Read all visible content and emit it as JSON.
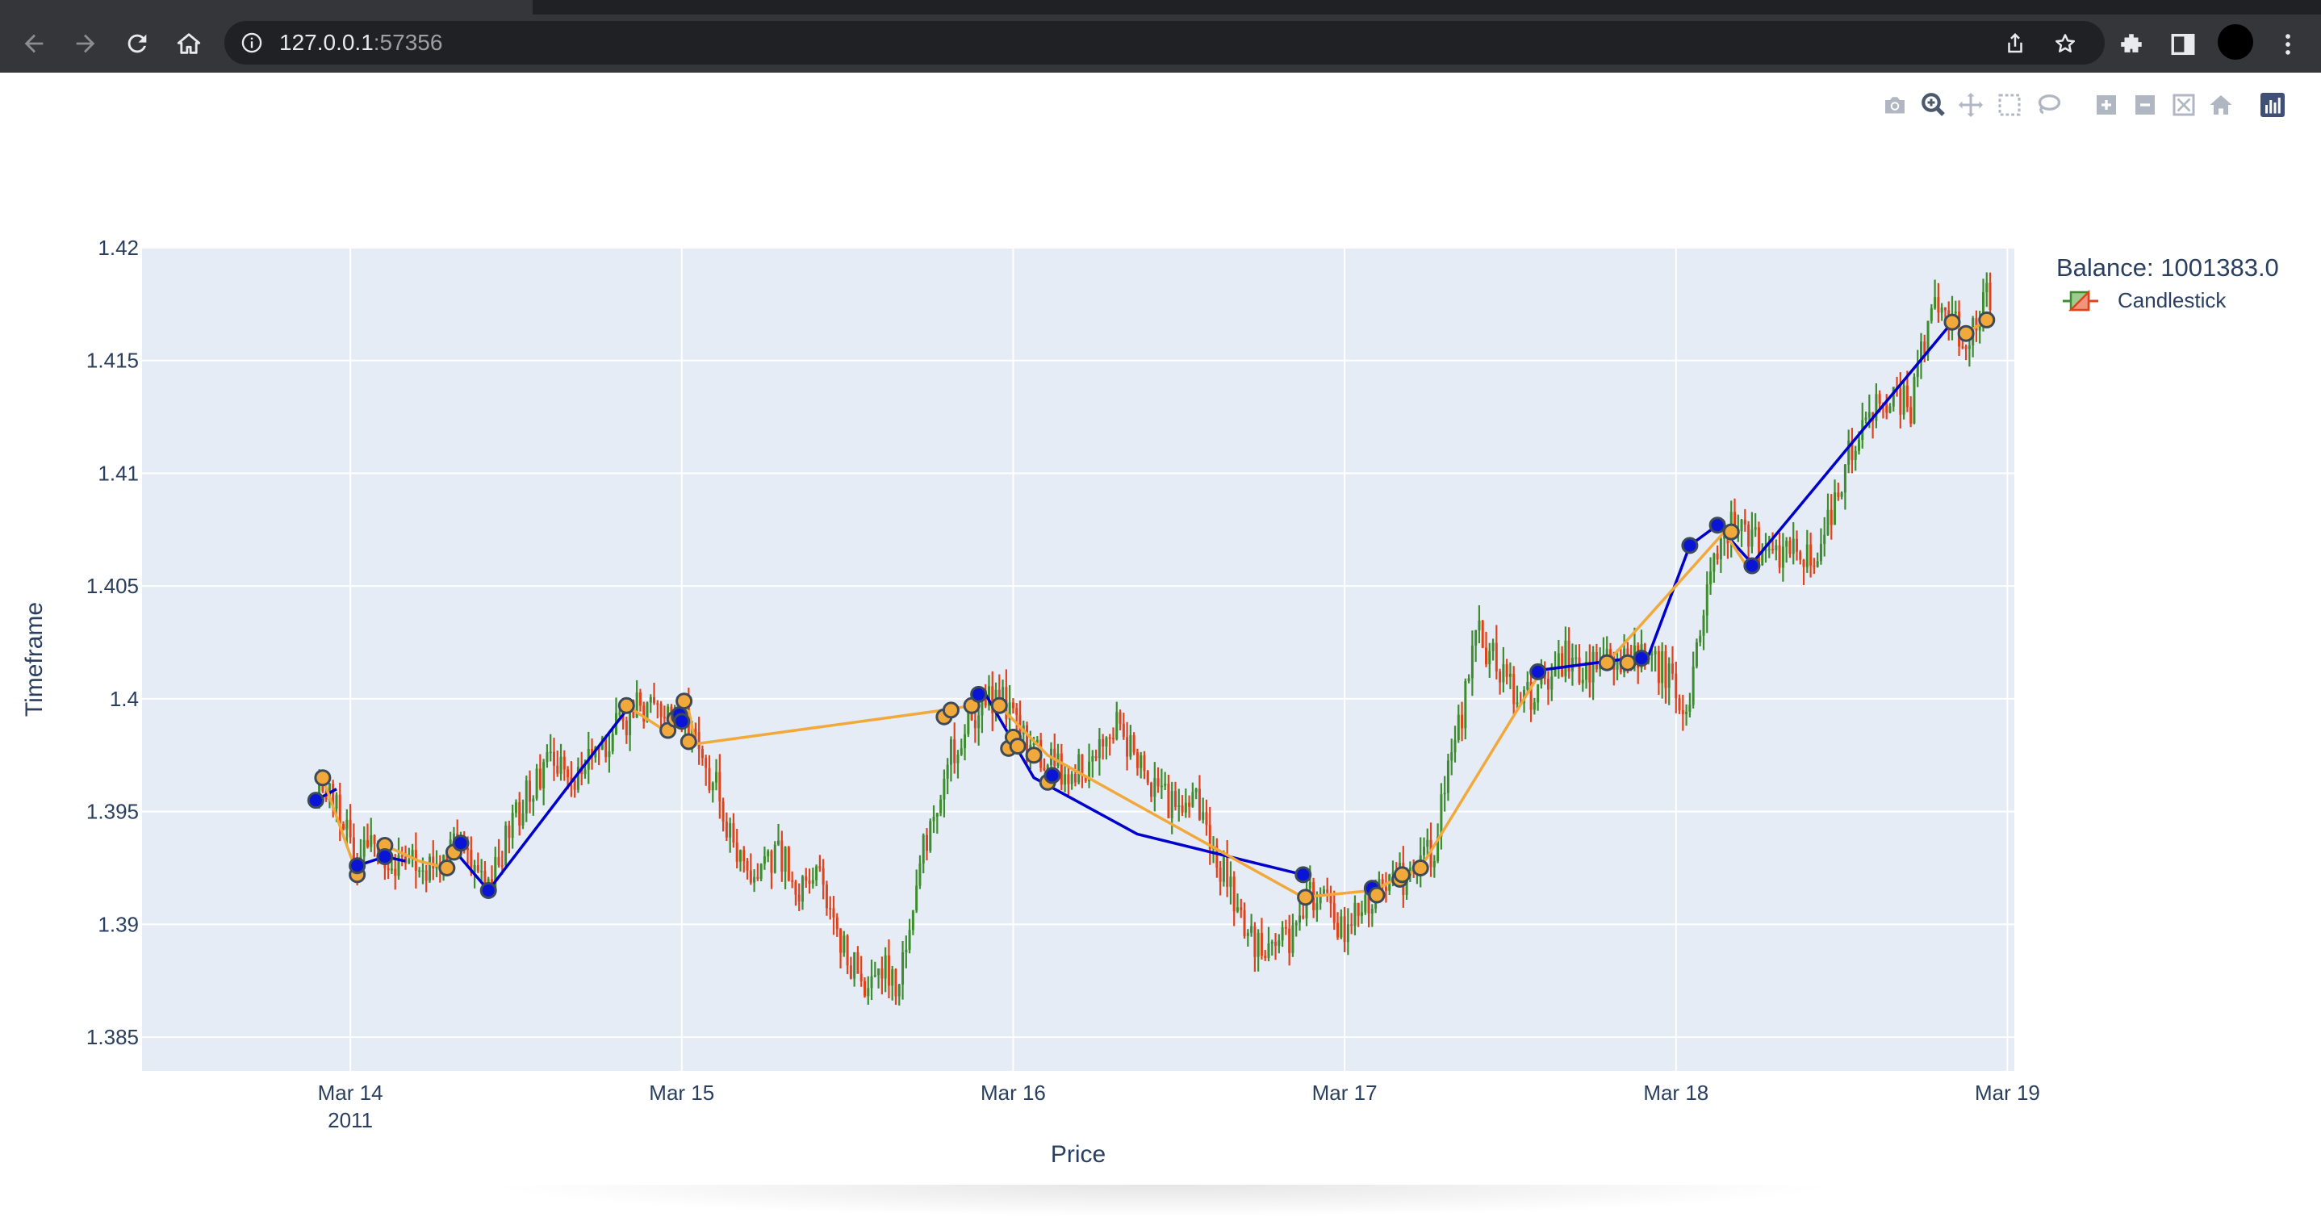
{
  "browser": {
    "url_host": "127.0.0.1",
    "url_port": ":57356"
  },
  "colors": {
    "plot_bg": "#e5ecf6",
    "grid": "#ffffff",
    "increasing": "#3d8c2e",
    "decreasing": "#e0421b",
    "long_line": "#0000cc",
    "short_line": "#f2a93b",
    "long_marker": "#0a14d6",
    "short_marker": "#f2a93b",
    "marker_outline": "#3c4a5a",
    "text": "#2a3f5f"
  },
  "chart_data": {
    "type": "candlestick",
    "title": "",
    "xlabel": "Price",
    "ylabel": "Timeframe",
    "x_tick_labels": [
      "Mar 14",
      "Mar 15",
      "Mar 16",
      "Mar 17",
      "Mar 18",
      "Mar 19"
    ],
    "x_tick_sublabel": "2011",
    "x_tick_values": [
      "2011-03-14",
      "2011-03-15",
      "2011-03-16",
      "2011-03-17",
      "2011-03-18",
      "2011-03-19"
    ],
    "xlim": [
      "2011-03-13 08:55",
      "2011-03-19 00:30"
    ],
    "y_tick_labels": [
      "1.385",
      "1.39",
      "1.395",
      "1.4",
      "1.405",
      "1.41",
      "1.415",
      "1.42"
    ],
    "y_tick_values": [
      1.385,
      1.39,
      1.395,
      1.4,
      1.405,
      1.41,
      1.415,
      1.42
    ],
    "ylim": [
      1.3835,
      1.42
    ],
    "legend": {
      "title": "Balance: 1001383.0",
      "entries": [
        "Candlestick"
      ],
      "placement": "top-right"
    },
    "price_path": [
      [
        "2011-03-13 21:30",
        1.3955
      ],
      [
        "2011-03-13 22:30",
        1.396
      ],
      [
        "2011-03-13 23:30",
        1.3945
      ],
      [
        "2011-03-14 00:30",
        1.3925
      ],
      [
        "2011-03-14 01:30",
        1.3935
      ],
      [
        "2011-03-14 02:30",
        1.393
      ],
      [
        "2011-03-14 04:00",
        1.3928
      ],
      [
        "2011-03-14 06:00",
        1.3925
      ],
      [
        "2011-03-14 07:30",
        1.3935
      ],
      [
        "2011-03-14 09:00",
        1.393
      ],
      [
        "2011-03-14 10:00",
        1.3915
      ],
      [
        "2011-03-14 11:30",
        1.394
      ],
      [
        "2011-03-14 13:00",
        1.396
      ],
      [
        "2011-03-14 14:30",
        1.3972
      ],
      [
        "2011-03-14 16:00",
        1.3965
      ],
      [
        "2011-03-14 17:30",
        1.3975
      ],
      [
        "2011-03-14 19:00",
        1.3985
      ],
      [
        "2011-03-14 20:30",
        1.3995
      ],
      [
        "2011-03-14 21:30",
        1.3998
      ],
      [
        "2011-03-14 23:00",
        1.3992
      ],
      [
        "2011-03-15 00:00",
        1.3995
      ],
      [
        "2011-03-15 01:00",
        1.398
      ],
      [
        "2011-03-15 02:30",
        1.396
      ],
      [
        "2011-03-15 04:00",
        1.393
      ],
      [
        "2011-03-15 05:30",
        1.392
      ],
      [
        "2011-03-15 07:00",
        1.3935
      ],
      [
        "2011-03-15 08:30",
        1.391
      ],
      [
        "2011-03-15 10:00",
        1.393
      ],
      [
        "2011-03-15 11:00",
        1.39
      ],
      [
        "2011-03-15 12:30",
        1.388
      ],
      [
        "2011-03-15 13:30",
        1.387
      ],
      [
        "2011-03-15 14:30",
        1.388
      ],
      [
        "2011-03-15 15:30",
        1.3875
      ],
      [
        "2011-03-15 16:30",
        1.39
      ],
      [
        "2011-03-15 17:30",
        1.3935
      ],
      [
        "2011-03-15 18:30",
        1.395
      ],
      [
        "2011-03-15 19:30",
        1.3975
      ],
      [
        "2011-03-15 20:30",
        1.3985
      ],
      [
        "2011-03-15 21:30",
        1.3995
      ],
      [
        "2011-03-15 22:30",
        1.4
      ],
      [
        "2011-03-15 23:30",
        1.3998
      ],
      [
        "2011-03-16 00:30",
        1.3985
      ],
      [
        "2011-03-16 01:30",
        1.3975
      ],
      [
        "2011-03-16 03:00",
        1.397
      ],
      [
        "2011-03-16 04:00",
        1.3965
      ],
      [
        "2011-03-16 06:00",
        1.3975
      ],
      [
        "2011-03-16 07:30",
        1.399
      ],
      [
        "2011-03-16 09:00",
        1.397
      ],
      [
        "2011-03-16 10:30",
        1.396
      ],
      [
        "2011-03-16 12:00",
        1.395
      ],
      [
        "2011-03-16 13:00",
        1.396
      ],
      [
        "2011-03-16 14:00",
        1.394
      ],
      [
        "2011-03-16 15:30",
        1.392
      ],
      [
        "2011-03-16 16:30",
        1.39
      ],
      [
        "2011-03-16 17:30",
        1.389
      ],
      [
        "2011-03-16 18:30",
        1.3885
      ],
      [
        "2011-03-16 20:00",
        1.3895
      ],
      [
        "2011-03-16 21:30",
        1.3915
      ],
      [
        "2011-03-16 23:00",
        1.3905
      ],
      [
        "2011-03-17 00:00",
        1.3895
      ],
      [
        "2011-03-17 01:00",
        1.3905
      ],
      [
        "2011-03-17 02:30",
        1.3915
      ],
      [
        "2011-03-17 04:00",
        1.392
      ],
      [
        "2011-03-17 05:30",
        1.3925
      ],
      [
        "2011-03-17 06:30",
        1.3935
      ],
      [
        "2011-03-17 07:30",
        1.397
      ],
      [
        "2011-03-17 08:30",
        1.399
      ],
      [
        "2011-03-17 09:30",
        1.403
      ],
      [
        "2011-03-17 10:30",
        1.402
      ],
      [
        "2011-03-17 11:30",
        1.401
      ],
      [
        "2011-03-17 13:00",
        1.4
      ],
      [
        "2011-03-17 14:30",
        1.4005
      ],
      [
        "2011-03-17 16:00",
        1.402
      ],
      [
        "2011-03-17 17:30",
        1.4012
      ],
      [
        "2011-03-17 19:00",
        1.4015
      ],
      [
        "2011-03-17 20:30",
        1.4018
      ],
      [
        "2011-03-17 22:00",
        1.402
      ],
      [
        "2011-03-17 23:30",
        1.401
      ],
      [
        "2011-03-18 00:30",
        1.399
      ],
      [
        "2011-03-18 01:30",
        1.402
      ],
      [
        "2011-03-18 02:30",
        1.406
      ],
      [
        "2011-03-18 04:00",
        1.4075
      ],
      [
        "2011-03-18 05:30",
        1.407
      ],
      [
        "2011-03-18 07:00",
        1.406
      ],
      [
        "2011-03-18 08:30",
        1.407
      ],
      [
        "2011-03-18 10:00",
        1.406
      ],
      [
        "2011-03-18 11:30",
        1.4085
      ],
      [
        "2011-03-18 12:30",
        1.411
      ],
      [
        "2011-03-18 14:00",
        1.413
      ],
      [
        "2011-03-18 15:30",
        1.4135
      ],
      [
        "2011-03-18 17:00",
        1.413
      ],
      [
        "2011-03-18 18:00",
        1.416
      ],
      [
        "2011-03-18 19:00",
        1.4175
      ],
      [
        "2011-03-18 20:00",
        1.4165
      ],
      [
        "2011-03-18 21:00",
        1.416
      ],
      [
        "2011-03-18 22:00",
        1.4175
      ],
      [
        "2011-03-18 23:00",
        1.418
      ]
    ],
    "trade_lines": [
      {
        "side": "long",
        "points": [
          [
            "2011-03-13 21:30",
            1.3955
          ],
          [
            "2011-03-13 23:00",
            1.396
          ]
        ]
      },
      {
        "side": "short",
        "points": [
          [
            "2011-03-13 22:00",
            1.3965
          ],
          [
            "2011-03-14 00:30",
            1.3922
          ]
        ]
      },
      {
        "side": "long",
        "points": [
          [
            "2011-03-14 00:30",
            1.3926
          ],
          [
            "2011-03-14 02:30",
            1.393
          ],
          [
            "2011-03-14 04:00",
            1.3928
          ]
        ]
      },
      {
        "side": "short",
        "points": [
          [
            "2011-03-14 02:30",
            1.3935
          ],
          [
            "2011-03-14 05:00",
            1.3928
          ],
          [
            "2011-03-14 07:00",
            1.3925
          ]
        ]
      },
      {
        "side": "long",
        "points": [
          [
            "2011-03-14 07:30",
            1.3933
          ],
          [
            "2011-03-14 10:00",
            1.3915
          ],
          [
            "2011-03-14 20:00",
            1.3995
          ]
        ]
      },
      {
        "side": "short",
        "points": [
          [
            "2011-03-14 20:00",
            1.3997
          ],
          [
            "2011-03-14 23:00",
            1.3985
          ],
          [
            "2011-03-15 00:00",
            1.3999
          ]
        ]
      },
      {
        "side": "long",
        "points": [
          [
            "2011-03-14 23:30",
            1.3992
          ],
          [
            "2011-03-15 00:00",
            1.399
          ]
        ]
      },
      {
        "side": "short",
        "points": [
          [
            "2011-03-15 00:30",
            1.3995
          ],
          [
            "2011-03-15 01:00",
            1.398
          ],
          [
            "2011-03-15 19:00",
            1.3995
          ],
          [
            "2011-03-15 21:00",
            1.3997
          ]
        ]
      },
      {
        "side": "long",
        "points": [
          [
            "2011-03-15 22:00",
            1.4002
          ],
          [
            "2011-03-16 01:30",
            1.3965
          ],
          [
            "2011-03-16 09:00",
            1.394
          ],
          [
            "2011-03-16 21:00",
            1.3922
          ]
        ]
      },
      {
        "side": "short",
        "points": [
          [
            "2011-03-15 23:00",
            1.3997
          ],
          [
            "2011-03-16 02:30",
            1.3975
          ],
          [
            "2011-03-16 21:00",
            1.3912
          ],
          [
            "2011-03-17 02:00",
            1.3915
          ],
          [
            "2011-03-17 05:30",
            1.3925
          ],
          [
            "2011-03-17 14:00",
            1.401
          ]
        ]
      },
      {
        "side": "long",
        "points": [
          [
            "2011-03-17 14:30",
            1.4013
          ],
          [
            "2011-03-17 22:00",
            1.4019
          ],
          [
            "2011-03-18 01:00",
            1.4068
          ],
          [
            "2011-03-18 03:00",
            1.4077
          ],
          [
            "2011-03-18 05:30",
            1.406
          ],
          [
            "2011-03-18 20:00",
            1.4167
          ]
        ]
      },
      {
        "side": "short",
        "points": [
          [
            "2011-03-17 19:00",
            1.4016
          ],
          [
            "2011-03-18 03:30",
            1.4074
          ],
          [
            "2011-03-18 05:00",
            1.406
          ]
        ]
      },
      {
        "side": "short",
        "points": [
          [
            "2011-03-18 20:00",
            1.4167
          ],
          [
            "2011-03-18 21:00",
            1.4162
          ],
          [
            "2011-03-18 22:30",
            1.4168
          ]
        ]
      }
    ],
    "markers": [
      {
        "side": "long",
        "x": "2011-03-13 21:30",
        "y": 1.3955
      },
      {
        "side": "short",
        "x": "2011-03-13 22:00",
        "y": 1.3965
      },
      {
        "side": "short",
        "x": "2011-03-14 00:30",
        "y": 1.3922
      },
      {
        "side": "long",
        "x": "2011-03-14 00:30",
        "y": 1.3926
      },
      {
        "side": "short",
        "x": "2011-03-14 02:30",
        "y": 1.3935
      },
      {
        "side": "long",
        "x": "2011-03-14 02:30",
        "y": 1.393
      },
      {
        "side": "short",
        "x": "2011-03-14 07:00",
        "y": 1.3925
      },
      {
        "side": "short",
        "x": "2011-03-14 07:30",
        "y": 1.3932
      },
      {
        "side": "long",
        "x": "2011-03-14 08:00",
        "y": 1.3936
      },
      {
        "side": "long",
        "x": "2011-03-14 10:00",
        "y": 1.3915
      },
      {
        "side": "short",
        "x": "2011-03-14 20:00",
        "y": 1.3997
      },
      {
        "side": "short",
        "x": "2011-03-14 23:00",
        "y": 1.3986
      },
      {
        "side": "short",
        "x": "2011-03-14 23:30",
        "y": 1.3991
      },
      {
        "side": "short",
        "x": "2011-03-14 23:50",
        "y": 1.3992
      },
      {
        "side": "long",
        "x": "2011-03-14 23:50",
        "y": 1.3993
      },
      {
        "side": "long",
        "x": "2011-03-15 00:00",
        "y": 1.399
      },
      {
        "side": "short",
        "x": "2011-03-15 00:10",
        "y": 1.3999
      },
      {
        "side": "short",
        "x": "2011-03-15 00:30",
        "y": 1.3981
      },
      {
        "side": "short",
        "x": "2011-03-15 19:00",
        "y": 1.3992
      },
      {
        "side": "short",
        "x": "2011-03-15 19:30",
        "y": 1.3995
      },
      {
        "side": "short",
        "x": "2011-03-15 21:00",
        "y": 1.3997
      },
      {
        "side": "long",
        "x": "2011-03-15 21:30",
        "y": 1.4002
      },
      {
        "side": "short",
        "x": "2011-03-15 23:00",
        "y": 1.3997
      },
      {
        "side": "short",
        "x": "2011-03-15 23:40",
        "y": 1.3978
      },
      {
        "side": "short",
        "x": "2011-03-16 00:00",
        "y": 1.3983
      },
      {
        "side": "short",
        "x": "2011-03-16 00:20",
        "y": 1.3979
      },
      {
        "side": "short",
        "x": "2011-03-16 01:30",
        "y": 1.3975
      },
      {
        "side": "short",
        "x": "2011-03-16 02:30",
        "y": 1.3963
      },
      {
        "side": "long",
        "x": "2011-03-16 02:50",
        "y": 1.3966
      },
      {
        "side": "long",
        "x": "2011-03-16 21:00",
        "y": 1.3922
      },
      {
        "side": "short",
        "x": "2011-03-16 21:10",
        "y": 1.3912
      },
      {
        "side": "long",
        "x": "2011-03-17 02:00",
        "y": 1.3916
      },
      {
        "side": "short",
        "x": "2011-03-17 02:20",
        "y": 1.3913
      },
      {
        "side": "short",
        "x": "2011-03-17 04:00",
        "y": 1.392
      },
      {
        "side": "short",
        "x": "2011-03-17 04:10",
        "y": 1.3922
      },
      {
        "side": "short",
        "x": "2011-03-17 05:30",
        "y": 1.3925
      },
      {
        "side": "long",
        "x": "2011-03-17 14:00",
        "y": 1.4012
      },
      {
        "side": "short",
        "x": "2011-03-17 19:00",
        "y": 1.4016
      },
      {
        "side": "short",
        "x": "2011-03-17 20:30",
        "y": 1.4016
      },
      {
        "side": "long",
        "x": "2011-03-17 21:30",
        "y": 1.4018
      },
      {
        "side": "long",
        "x": "2011-03-18 01:00",
        "y": 1.4068
      },
      {
        "side": "long",
        "x": "2011-03-18 03:00",
        "y": 1.4077
      },
      {
        "side": "short",
        "x": "2011-03-18 04:00",
        "y": 1.4074
      },
      {
        "side": "long",
        "x": "2011-03-18 05:30",
        "y": 1.4059
      },
      {
        "side": "short",
        "x": "2011-03-18 20:00",
        "y": 1.4167
      },
      {
        "side": "short",
        "x": "2011-03-18 21:00",
        "y": 1.4162
      },
      {
        "side": "short",
        "x": "2011-03-18 22:30",
        "y": 1.4168
      }
    ]
  }
}
